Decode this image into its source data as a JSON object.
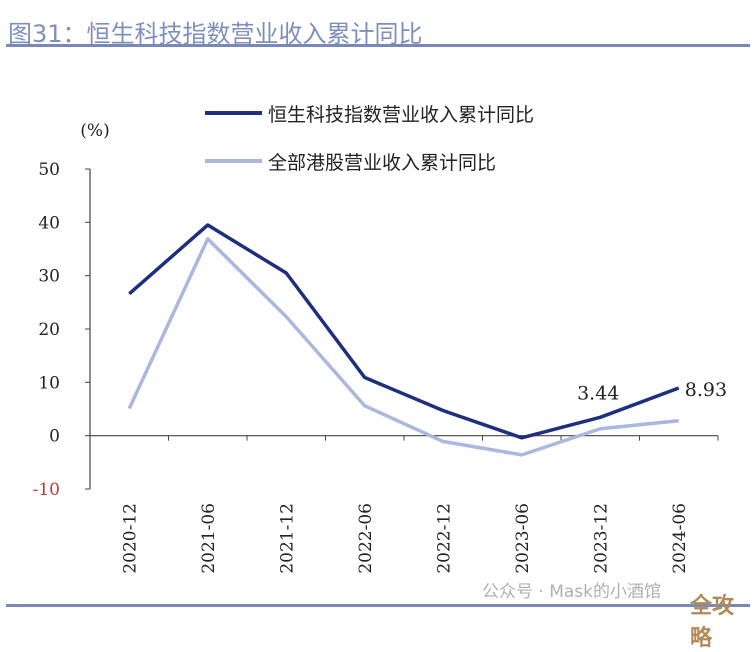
{
  "title": "图31：恒生科技指数营业收入累计同比",
  "watermark": "公众号 · Mask的小酒馆",
  "watermark_badge": "全攻略",
  "chart_data": {
    "type": "line",
    "title": "",
    "ylabel": "(%)",
    "ylim": [
      -10,
      50
    ],
    "yticks": [
      50,
      40,
      30,
      20,
      10,
      0,
      -10
    ],
    "negative_tick_color": "#c0392b",
    "legend_placement": "top",
    "grid": false,
    "categories": [
      "2020-12",
      "2021-06",
      "2021-12",
      "2022-06",
      "2022-12",
      "2023-06",
      "2023-12",
      "2024-06"
    ],
    "series": [
      {
        "name": "恒生科技指数营业收入累计同比",
        "color": "#1f2f80",
        "values": [
          26.6,
          39.5,
          30.5,
          10.9,
          4.7,
          -0.4,
          3.44,
          8.93
        ]
      },
      {
        "name": "全部港股营业收入累计同比",
        "color": "#aab8e0",
        "values": [
          5.1,
          36.9,
          22.3,
          5.6,
          -1.1,
          -3.6,
          1.3,
          2.8
        ]
      }
    ],
    "annotations": [
      {
        "category": "2023-12",
        "series": 0,
        "text": "3.44"
      },
      {
        "category": "2024-06",
        "series": 0,
        "text": "8.93"
      }
    ]
  }
}
